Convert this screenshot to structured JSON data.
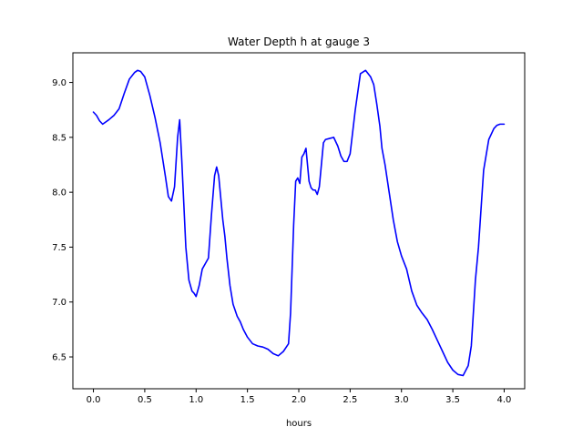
{
  "chart_data": {
    "type": "line",
    "title": "Water Depth h at gauge 3",
    "xlabel": "hours",
    "ylabel": "",
    "xlim": [
      -0.2,
      4.2
    ],
    "ylim": [
      6.21,
      9.27
    ],
    "xticks": [
      0.0,
      0.5,
      1.0,
      1.5,
      2.0,
      2.5,
      3.0,
      3.5,
      4.0
    ],
    "xtick_labels": [
      "0.0",
      "0.5",
      "1.0",
      "1.5",
      "2.0",
      "2.5",
      "3.0",
      "3.5",
      "4.0"
    ],
    "yticks": [
      6.5,
      7.0,
      7.5,
      8.0,
      8.5,
      9.0
    ],
    "ytick_labels": [
      "6.5",
      "7.0",
      "7.5",
      "8.0",
      "8.5",
      "9.0"
    ],
    "grid": false,
    "series": [
      {
        "color": "#0000ff",
        "x": [
          0.0,
          0.03,
          0.06,
          0.09,
          0.12,
          0.15,
          0.2,
          0.25,
          0.3,
          0.35,
          0.4,
          0.43,
          0.46,
          0.5,
          0.55,
          0.6,
          0.65,
          0.7,
          0.73,
          0.76,
          0.79,
          0.82,
          0.84,
          0.86,
          0.88,
          0.9,
          0.93,
          0.96,
          0.98,
          1.0,
          1.03,
          1.06,
          1.09,
          1.12,
          1.15,
          1.18,
          1.2,
          1.22,
          1.24,
          1.26,
          1.28,
          1.3,
          1.33,
          1.36,
          1.4,
          1.43,
          1.46,
          1.5,
          1.55,
          1.6,
          1.65,
          1.7,
          1.75,
          1.8,
          1.85,
          1.9,
          1.92,
          1.95,
          1.97,
          1.99,
          2.01,
          2.03,
          2.05,
          2.07,
          2.09,
          2.1,
          2.12,
          2.14,
          2.16,
          2.18,
          2.2,
          2.22,
          2.24,
          2.26,
          2.3,
          2.34,
          2.38,
          2.41,
          2.44,
          2.47,
          2.5,
          2.55,
          2.6,
          2.65,
          2.7,
          2.73,
          2.76,
          2.79,
          2.81,
          2.84,
          2.88,
          2.92,
          2.96,
          3.0,
          3.05,
          3.1,
          3.15,
          3.2,
          3.25,
          3.3,
          3.35,
          3.4,
          3.45,
          3.5,
          3.55,
          3.6,
          3.65,
          3.68,
          3.7,
          3.72,
          3.75,
          3.8,
          3.85,
          3.9,
          3.93,
          3.96,
          4.0
        ],
        "y": [
          8.73,
          8.7,
          8.65,
          8.62,
          8.64,
          8.66,
          8.7,
          8.76,
          8.9,
          9.03,
          9.09,
          9.11,
          9.1,
          9.05,
          8.88,
          8.68,
          8.45,
          8.15,
          7.96,
          7.92,
          8.05,
          8.5,
          8.66,
          8.3,
          7.9,
          7.5,
          7.2,
          7.1,
          7.08,
          7.05,
          7.15,
          7.3,
          7.35,
          7.4,
          7.8,
          8.15,
          8.23,
          8.15,
          7.95,
          7.75,
          7.6,
          7.4,
          7.15,
          6.98,
          6.87,
          6.82,
          6.75,
          6.68,
          6.62,
          6.6,
          6.59,
          6.57,
          6.53,
          6.51,
          6.55,
          6.62,
          6.9,
          7.7,
          8.1,
          8.13,
          8.08,
          8.32,
          8.35,
          8.4,
          8.2,
          8.1,
          8.04,
          8.02,
          8.02,
          7.98,
          8.05,
          8.25,
          8.45,
          8.48,
          8.49,
          8.5,
          8.42,
          8.33,
          8.28,
          8.28,
          8.35,
          8.75,
          9.08,
          9.11,
          9.05,
          8.98,
          8.8,
          8.6,
          8.4,
          8.25,
          8.0,
          7.75,
          7.55,
          7.42,
          7.3,
          7.1,
          6.97,
          6.9,
          6.84,
          6.75,
          6.65,
          6.55,
          6.45,
          6.38,
          6.34,
          6.33,
          6.42,
          6.6,
          6.9,
          7.2,
          7.5,
          8.2,
          8.48,
          8.58,
          8.61,
          8.62,
          8.62
        ]
      }
    ]
  }
}
